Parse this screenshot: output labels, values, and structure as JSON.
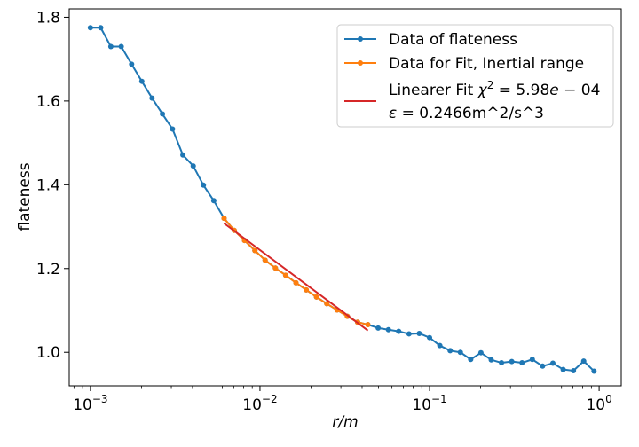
{
  "chart_data": {
    "type": "line",
    "xlabel": "r/m",
    "ylabel": "flateness",
    "xscale": "log",
    "xlim": [
      0.00075,
      1.35
    ],
    "ylim": [
      0.92,
      1.82
    ],
    "x_ticks": [
      {
        "value": 0.001,
        "mantissa": "10",
        "exponent": "−3"
      },
      {
        "value": 0.01,
        "mantissa": "10",
        "exponent": "−2"
      },
      {
        "value": 0.1,
        "mantissa": "10",
        "exponent": "−1"
      },
      {
        "value": 1,
        "mantissa": "10",
        "exponent": "0"
      }
    ],
    "y_ticks": [
      {
        "value": 1.0,
        "label": "1.0"
      },
      {
        "value": 1.2,
        "label": "1.2"
      },
      {
        "value": 1.4,
        "label": "1.4"
      },
      {
        "value": 1.6,
        "label": "1.6"
      },
      {
        "value": 1.8,
        "label": "1.8"
      }
    ],
    "grid": false,
    "legend_position": "top-right",
    "series": [
      {
        "name": "Data of flateness",
        "color": "#1f77b4",
        "marker": "circle",
        "x": [
          0.001,
          0.00115,
          0.00132,
          0.00152,
          0.00175,
          0.00201,
          0.00231,
          0.00266,
          0.00305,
          0.00351,
          0.00404,
          0.00464,
          0.00534,
          0.00614,
          0.00705,
          0.00811,
          0.00933,
          0.01072,
          0.01233,
          0.01417,
          0.0163,
          0.01874,
          0.02154,
          0.02477,
          0.02848,
          0.03275,
          0.03765,
          0.04329,
          0.04977,
          0.05722,
          0.06579,
          0.07565,
          0.08697,
          0.1,
          0.115,
          0.1322,
          0.152,
          0.1748,
          0.2009,
          0.231,
          0.2656,
          0.3054,
          0.3511,
          0.4037,
          0.4642,
          0.5337,
          0.6136,
          0.7055,
          0.8111,
          0.9326
        ],
        "y": [
          1.775,
          1.775,
          1.73,
          1.73,
          1.688,
          1.647,
          1.607,
          1.569,
          1.533,
          1.471,
          1.445,
          1.399,
          1.362,
          1.32,
          1.291,
          1.267,
          1.243,
          1.22,
          1.201,
          1.184,
          1.166,
          1.149,
          1.132,
          1.116,
          1.101,
          1.086,
          1.072,
          1.066,
          1.058,
          1.054,
          1.05,
          1.044,
          1.045,
          1.035,
          1.016,
          1.004,
          1.0,
          0.983,
          0.999,
          0.982,
          0.975,
          0.978,
          0.975,
          0.983,
          0.967,
          0.974,
          0.959,
          0.956,
          0.979,
          0.955
        ]
      },
      {
        "name": "Data for Fit, Inertial range",
        "color": "#ff7f0e",
        "marker": "circle",
        "x": [
          0.00614,
          0.00705,
          0.00811,
          0.00933,
          0.01072,
          0.01233,
          0.01417,
          0.0163,
          0.01874,
          0.02154,
          0.02477,
          0.02848,
          0.03275,
          0.03765,
          0.04329
        ],
        "y": [
          1.32,
          1.291,
          1.267,
          1.243,
          1.22,
          1.201,
          1.184,
          1.166,
          1.149,
          1.132,
          1.116,
          1.101,
          1.086,
          1.072,
          1.066
        ]
      },
      {
        "name_line1_prefix": "Linearer Fit ",
        "name_line1_chi": "χ",
        "name_line1_sup": "2",
        "name_line1_eq": " = 5.98",
        "name_line1_e": "e",
        "name_line1_rest": " − 04",
        "name_line2_eps": "ε",
        "name_line2_rest": " = 0.2466m^2/s^3",
        "color": "#d62728",
        "marker": "none",
        "x": [
          0.00614,
          0.04329
        ],
        "y": [
          1.308,
          1.052
        ]
      }
    ]
  }
}
